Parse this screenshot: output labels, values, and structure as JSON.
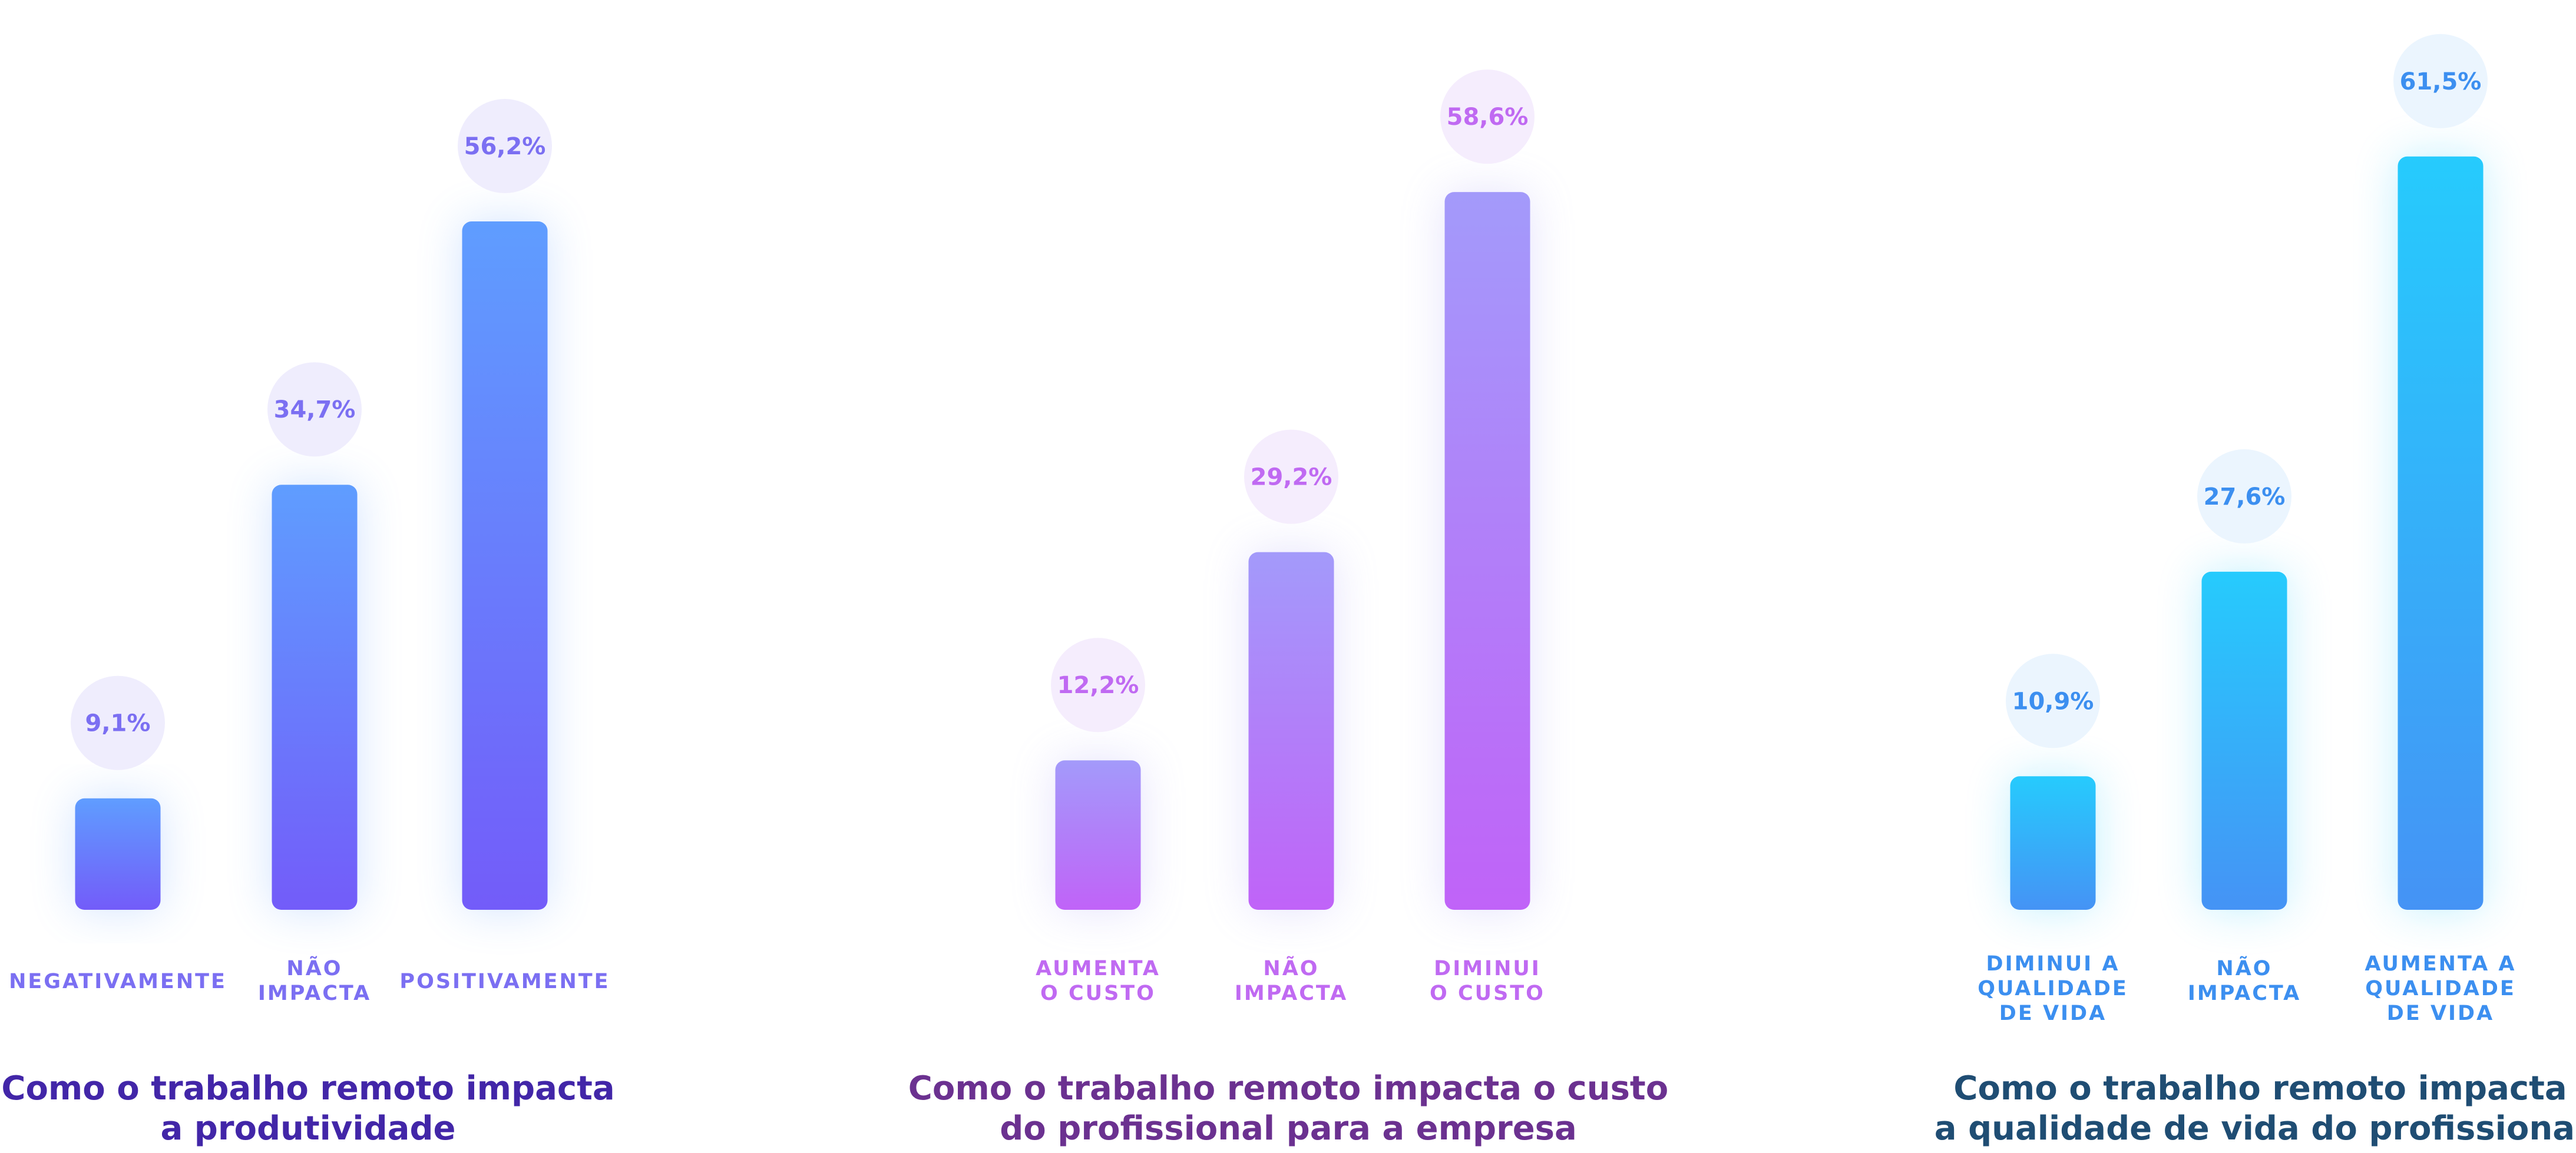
{
  "chart_data": [
    {
      "type": "bar",
      "title": "Como o trabalho remoto impacta\na produtividade",
      "categories": [
        "NEGATIVAMENTE",
        "NÃO\nIMPACTA",
        "POSITIVAMENTE"
      ],
      "values": [
        9.1,
        34.7,
        56.2
      ],
      "value_labels": [
        "9,1%",
        "34,7%",
        "56,2%"
      ],
      "unit": "%",
      "xlabel": "",
      "ylabel": "",
      "grid": false,
      "colors": {
        "bar_top": "#5f9dff",
        "bar_bottom": "#735cf9",
        "bubble": "#efedfd",
        "value_text": "#7b6ff2",
        "category_text": "#7b6ff2",
        "title": "#4226a8"
      }
    },
    {
      "type": "bar",
      "title": "Como o trabalho remoto impacta o custo\ndo profissional para a empresa",
      "categories": [
        "AUMENTA\nO CUSTO",
        "NÃO\nIMPACTA",
        "DIMINUI\nO CUSTO"
      ],
      "values": [
        12.2,
        29.2,
        58.6
      ],
      "value_labels": [
        "12,2%",
        "29,2%",
        "58,6%"
      ],
      "unit": "%",
      "xlabel": "",
      "ylabel": "",
      "grid": false,
      "colors": {
        "bar_top": "#a39afa",
        "bar_bottom": "#c063f8",
        "bubble": "#f5edfd",
        "value_text": "#c06af2",
        "category_text": "#c06af2",
        "title": "#6b3190"
      }
    },
    {
      "type": "bar",
      "title": "Como o trabalho remoto impacta\na qualidade de vida do profissional",
      "categories": [
        "DIMINUI A\nQUALIDADE\nDE VIDA",
        "NÃO\nIMPACTA",
        "AUMENTA A\nQUALIDADE\nDE VIDA"
      ],
      "values": [
        10.9,
        27.6,
        61.5
      ],
      "value_labels": [
        "10,9%",
        "27,6%",
        "61,5%"
      ],
      "unit": "%",
      "xlabel": "",
      "ylabel": "",
      "grid": false,
      "colors": {
        "bar_top": "#26cbfd",
        "bar_bottom": "#4593f5",
        "bubble": "#ebf5fe",
        "value_text": "#3c8ff0",
        "category_text": "#3c8ff0",
        "title": "#1f4d73"
      }
    }
  ]
}
